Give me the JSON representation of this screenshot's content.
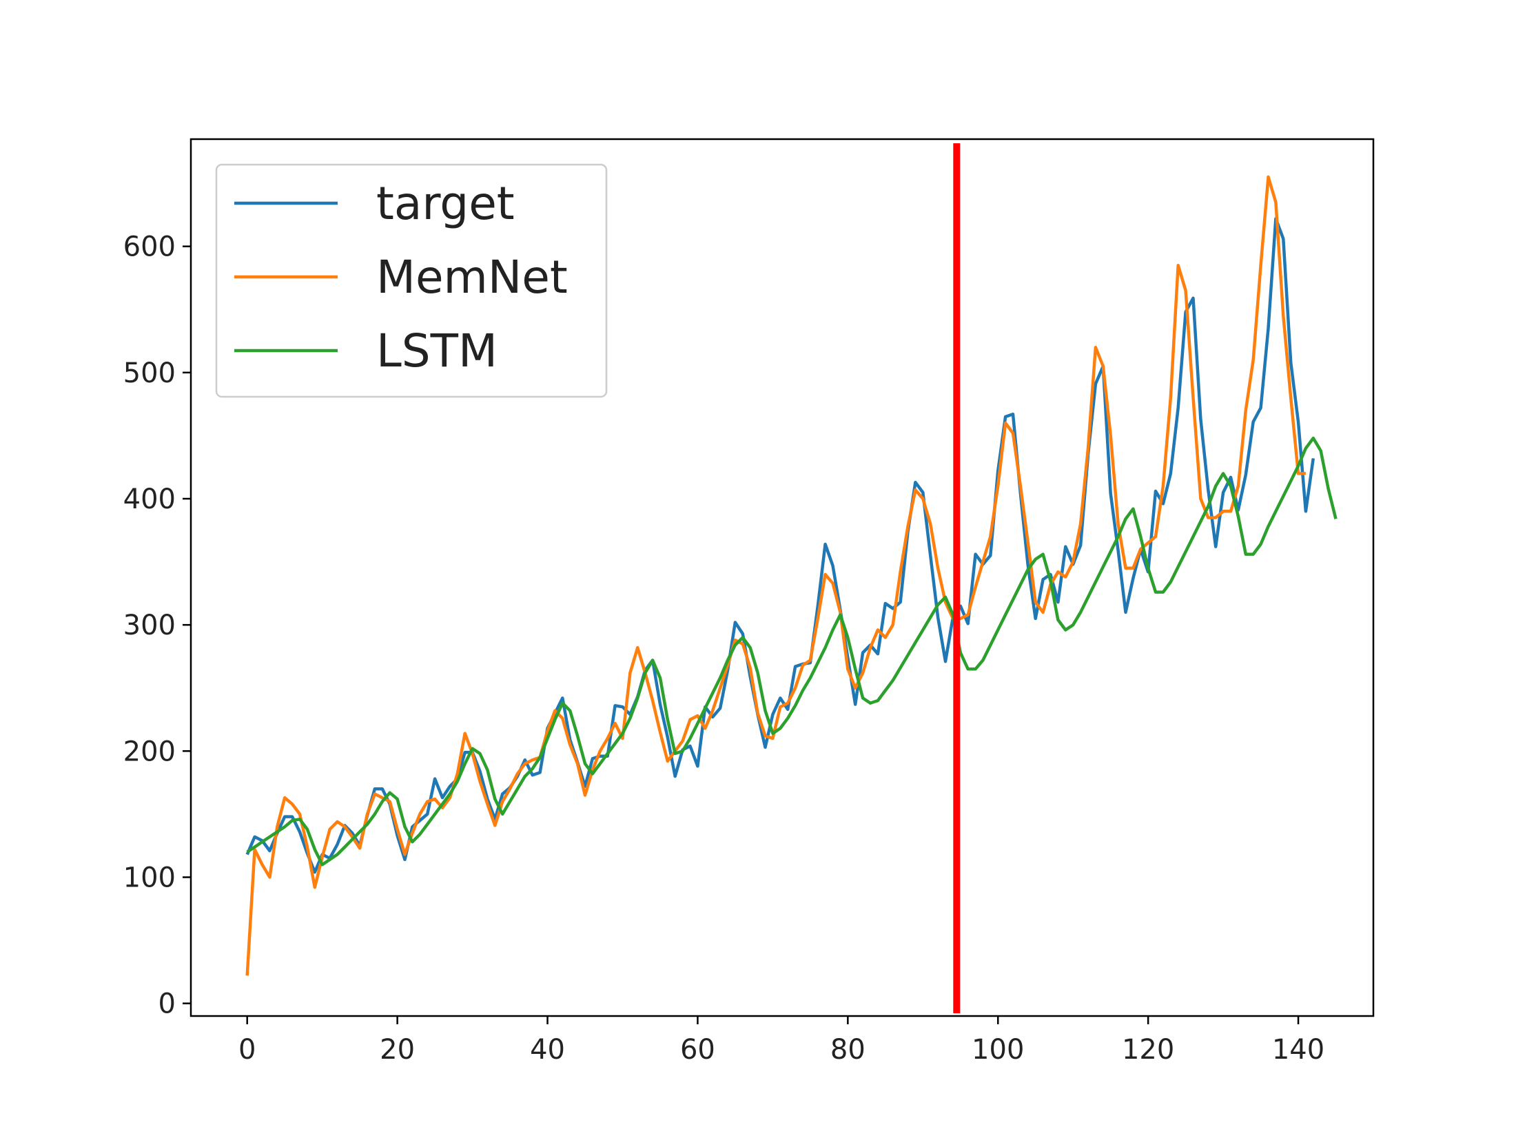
{
  "chart_data": {
    "type": "line",
    "title": "",
    "xlabel": "",
    "ylabel": "",
    "xlim": [
      -7.5,
      150
    ],
    "ylim": [
      -10,
      685
    ],
    "xticks": [
      0,
      20,
      40,
      60,
      80,
      100,
      120,
      140
    ],
    "yticks": [
      0,
      100,
      200,
      300,
      400,
      500,
      600
    ],
    "xtick_labels": [
      "0",
      "20",
      "40",
      "60",
      "80",
      100,
      "120",
      "140"
    ],
    "ytick_labels": [
      "0",
      "100",
      "200",
      "300",
      "400",
      "500",
      "600"
    ],
    "grid": false,
    "legend_position": "top-left",
    "vline": {
      "x": 94.5,
      "color": "#ff0000"
    },
    "series": [
      {
        "name": "target",
        "color": "#1f77b4",
        "values": [
          118,
          132,
          129,
          121,
          135,
          148,
          148,
          136,
          119,
          104,
          118,
          115,
          126,
          141,
          135,
          125,
          149,
          170,
          170,
          158,
          133,
          114,
          140,
          145,
          150,
          178,
          163,
          172,
          178,
          199,
          199,
          184,
          162,
          146,
          166,
          171,
          180,
          193,
          181,
          183,
          218,
          230,
          242,
          209,
          191,
          172,
          194,
          196,
          196,
          236,
          235,
          229,
          243,
          264,
          272,
          237,
          211,
          180,
          201,
          204,
          188,
          235,
          227,
          234,
          264,
          302,
          293,
          259,
          229,
          203,
          229,
          242,
          233,
          267,
          269,
          270,
          315,
          364,
          347,
          312,
          274,
          237,
          278,
          284,
          277,
          317,
          313,
          318,
          374,
          413,
          405,
          355,
          306,
          271,
          306,
          315,
          301,
          356,
          348,
          355,
          422,
          465,
          467,
          404,
          347,
          305,
          336,
          340,
          318,
          362,
          348,
          363,
          435,
          491,
          505,
          404,
          359,
          310,
          337,
          360,
          342,
          406,
          396,
          420,
          472,
          548,
          559,
          463,
          407,
          362,
          405,
          417,
          391,
          419,
          461,
          472,
          535,
          622,
          606,
          508,
          461,
          390,
          432
        ]
      },
      {
        "name": "MemNet",
        "color": "#ff7f0e",
        "values": [
          22,
          122,
          110,
          100,
          140,
          163,
          158,
          150,
          124,
          92,
          116,
          138,
          144,
          140,
          132,
          123,
          150,
          166,
          163,
          160,
          138,
          118,
          135,
          150,
          160,
          162,
          155,
          163,
          182,
          214,
          198,
          176,
          158,
          141,
          160,
          170,
          182,
          190,
          193,
          195,
          216,
          232,
          226,
          205,
          190,
          165,
          185,
          200,
          210,
          222,
          210,
          262,
          282,
          262,
          240,
          215,
          192,
          200,
          208,
          225,
          228,
          218,
          232,
          250,
          268,
          288,
          285,
          266,
          230,
          212,
          210,
          235,
          238,
          250,
          268,
          272,
          305,
          340,
          333,
          310,
          265,
          250,
          262,
          282,
          296,
          290,
          300,
          342,
          378,
          407,
          400,
          380,
          345,
          318,
          305,
          305,
          308,
          330,
          350,
          370,
          410,
          460,
          452,
          410,
          365,
          318,
          310,
          332,
          342,
          338,
          350,
          380,
          440,
          520,
          505,
          450,
          380,
          345,
          345,
          360,
          365,
          370,
          410,
          480,
          585,
          565,
          480,
          400,
          385,
          385,
          390,
          390,
          410,
          470,
          510,
          585,
          655,
          635,
          545,
          480,
          420,
          420
        ]
      },
      {
        "name": "LSTM",
        "color": "#2ca02c",
        "values": [
          120,
          124,
          128,
          132,
          136,
          140,
          145,
          146,
          138,
          122,
          110,
          114,
          118,
          124,
          130,
          136,
          142,
          150,
          160,
          167,
          162,
          140,
          128,
          134,
          142,
          150,
          158,
          166,
          176,
          190,
          202,
          198,
          185,
          162,
          150,
          160,
          170,
          180,
          186,
          195,
          210,
          225,
          238,
          232,
          212,
          190,
          182,
          190,
          198,
          206,
          214,
          226,
          242,
          262,
          272,
          258,
          225,
          198,
          200,
          210,
          222,
          234,
          246,
          258,
          272,
          284,
          290,
          282,
          262,
          232,
          214,
          218,
          226,
          236,
          248,
          258,
          270,
          282,
          296,
          308,
          290,
          265,
          242,
          238,
          240,
          248,
          256,
          266,
          276,
          286,
          296,
          306,
          316,
          322,
          308,
          278,
          265,
          265,
          272,
          284,
          296,
          308,
          320,
          332,
          344,
          352,
          356,
          335,
          304,
          296,
          300,
          310,
          322,
          334,
          346,
          358,
          370,
          384,
          392,
          370,
          345,
          326,
          326,
          334,
          346,
          358,
          370,
          382,
          394,
          410,
          420,
          410,
          386,
          356,
          356,
          364,
          378,
          390,
          402,
          414,
          426,
          440,
          448,
          438,
          408,
          384
        ]
      }
    ]
  }
}
